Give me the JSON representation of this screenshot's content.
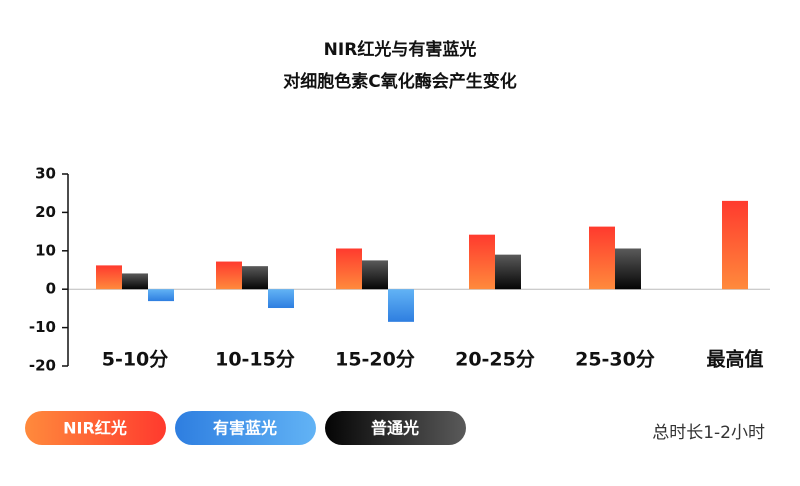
{
  "chart_data": {
    "type": "bar",
    "title": "NIR红光与有害蓝光",
    "subtitle": "对细胞色素C氧化酶会产生变化",
    "note": "总时长1-2小时",
    "categories": [
      "5-10分",
      "10-15分",
      "15-20分",
      "20-25分",
      "25-30分",
      "最高值"
    ],
    "series": [
      {
        "name": "NIR红光",
        "color": [
          "#ff3a2e",
          "#ff8a3c"
        ],
        "values": [
          6.2,
          7.2,
          10.6,
          14.2,
          16.3,
          23
        ]
      },
      {
        "name": "普通光",
        "color": [
          "#5a5a5a",
          "#050505"
        ],
        "values": [
          4.1,
          6,
          7.5,
          9,
          10.6,
          null
        ]
      },
      {
        "name": "有害蓝光",
        "color": [
          "#62b3f5",
          "#2e7ee0"
        ],
        "values": [
          -3.1,
          -4.9,
          -8.5,
          null,
          null,
          null
        ]
      }
    ],
    "legend_order": [
      0,
      2,
      1
    ],
    "ylim": [
      -20,
      30
    ],
    "yticks": [
      -20,
      -10,
      0,
      10,
      20,
      30
    ]
  }
}
